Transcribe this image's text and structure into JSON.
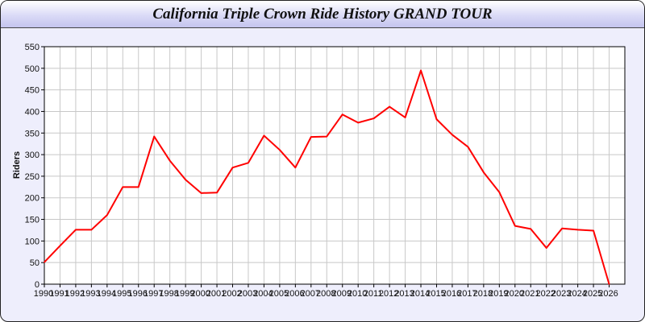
{
  "chart_data": {
    "type": "line",
    "title": "California Triple Crown Ride History GRAND TOUR",
    "xlabel": "",
    "ylabel": "Riders",
    "xlim": [
      1990,
      2027
    ],
    "ylim": [
      0,
      550
    ],
    "yticks": [
      0,
      50,
      100,
      150,
      200,
      250,
      300,
      350,
      400,
      450,
      500,
      550
    ],
    "grid": true,
    "series": [
      {
        "color": "#ff0000",
        "x": [
          1990,
          1991,
          1992,
          1993,
          1994,
          1995,
          1996,
          1997,
          1998,
          1999,
          2000,
          2001,
          2002,
          2003,
          2004,
          2005,
          2006,
          2007,
          2008,
          2009,
          2010,
          2011,
          2012,
          2013,
          2014,
          2015,
          2016,
          2017,
          2018,
          2019,
          2020,
          2021,
          2022,
          2023,
          2024,
          2025,
          2026
        ],
        "y": [
          51,
          89,
          126,
          126,
          160,
          225,
          225,
          342,
          286,
          242,
          211,
          212,
          270,
          281,
          344,
          311,
          270,
          341,
          342,
          393,
          374,
          384,
          411,
          386,
          495,
          382,
          346,
          318,
          259,
          213,
          135,
          128,
          84,
          129,
          126,
          124,
          0
        ]
      }
    ]
  }
}
